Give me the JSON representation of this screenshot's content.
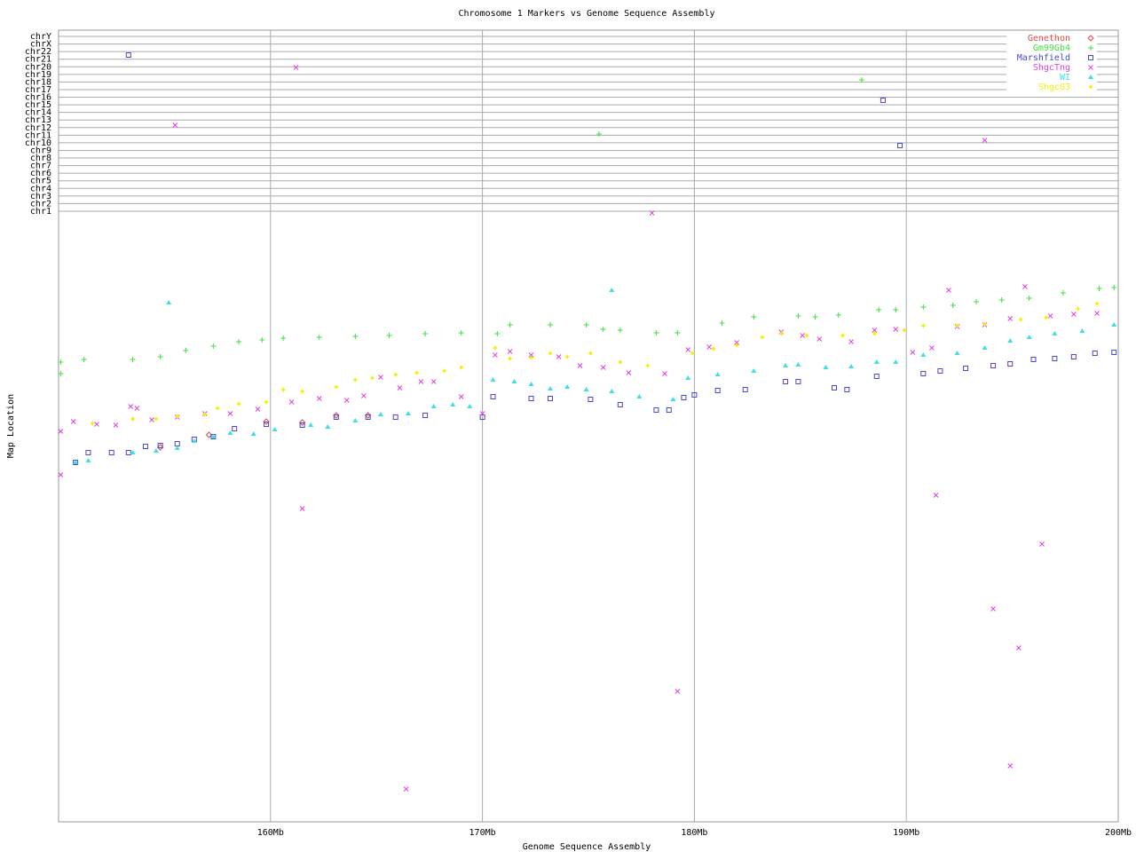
{
  "chart_data": {
    "type": "scatter",
    "title": "Chromosome 1 Markers vs Genome Sequence Assembly",
    "x_label": "Genome Sequence Assembly",
    "y_label": "Map Location",
    "xlim": [
      150,
      200
    ],
    "xticks": [
      {
        "value": 160,
        "label": "160Mb"
      },
      {
        "value": 170,
        "label": "170Mb"
      },
      {
        "value": 180,
        "label": "180Mb"
      },
      {
        "value": 190,
        "label": "190Mb"
      },
      {
        "value": 200,
        "label": "200Mb"
      }
    ],
    "ylim": [
      0,
      892
    ],
    "grid": true,
    "legend": "top-right",
    "chromosomes": [
      "chr1",
      "chr2",
      "chr3",
      "chr4",
      "chr5",
      "chr6",
      "chr7",
      "chr8",
      "chr9",
      "chr10",
      "chr11",
      "chr12",
      "chr13",
      "chr14",
      "chr15",
      "chr16",
      "chr17",
      "chr18",
      "chr19",
      "chr20",
      "chr21",
      "chr22",
      "chrX",
      "chrY"
    ],
    "series": [
      {
        "name": "Genethon",
        "color": "#e04848",
        "marker": "diamond",
        "x": [
          154.8,
          157.1,
          159.8,
          161.5,
          163.1,
          164.6
        ],
        "values": [
          422,
          436,
          451,
          450,
          458,
          458
        ]
      },
      {
        "name": "Gm99Gb4",
        "color": "#40e040",
        "marker": "plus",
        "x": [
          150.1,
          150.1,
          151.2,
          153.5,
          154.8,
          156.0,
          157.3,
          158.5,
          159.6,
          160.6,
          162.3,
          164.0,
          165.6,
          167.3,
          169.0,
          170.7,
          171.3,
          173.2,
          174.9,
          175.7,
          176.5,
          178.2,
          179.2,
          181.3,
          182.8,
          184.9,
          185.7,
          186.8,
          188.7,
          189.5,
          190.8,
          192.2,
          193.3,
          194.5,
          195.8,
          197.4,
          199.1,
          199.8,
          175.5,
          187.9
        ],
        "values": [
          518,
          505,
          521,
          521,
          524,
          531,
          536,
          541,
          543,
          545,
          546,
          547,
          548,
          550,
          551,
          550,
          560,
          560,
          560,
          555,
          554,
          551,
          551,
          562,
          569,
          570,
          569,
          571,
          577,
          577,
          580,
          582,
          586,
          588,
          590,
          596,
          601,
          602,
          775,
          836
        ]
      },
      {
        "name": "Marshfield",
        "color": "#4848d0",
        "marker": "square",
        "x": [
          150.8,
          151.4,
          152.5,
          153.3,
          154.1,
          154.8,
          155.6,
          156.4,
          157.3,
          158.3,
          159.8,
          161.5,
          163.1,
          164.6,
          165.9,
          167.3,
          170.0,
          170.5,
          172.3,
          173.2,
          175.1,
          176.5,
          178.2,
          178.8,
          179.5,
          180.0,
          181.1,
          182.4,
          184.3,
          184.9,
          186.6,
          187.2,
          188.6,
          190.8,
          191.6,
          192.8,
          194.1,
          194.9,
          196.0,
          197.0,
          197.9,
          198.9,
          199.8,
          153.3,
          188.9,
          189.7
        ],
        "values": [
          405,
          416,
          416,
          416,
          423,
          424,
          426,
          431,
          434,
          443,
          448,
          447,
          456,
          456,
          456,
          458,
          456,
          479,
          477,
          477,
          476,
          470,
          464,
          464,
          478,
          481,
          486,
          487,
          496,
          496,
          489,
          487,
          502,
          505,
          508,
          511,
          514,
          516,
          521,
          522,
          524,
          528,
          529,
          864,
          813,
          762
        ]
      },
      {
        "name": "ShgcTng",
        "color": "#e040e0",
        "marker": "cross",
        "x": [
          150.1,
          150.1,
          150.7,
          151.8,
          152.7,
          153.4,
          153.7,
          154.4,
          155.6,
          156.9,
          158.1,
          159.4,
          161.0,
          162.3,
          163.6,
          164.4,
          165.2,
          166.1,
          167.1,
          167.7,
          169.0,
          170.0,
          170.6,
          171.3,
          172.3,
          173.6,
          174.6,
          175.7,
          176.9,
          178.6,
          179.7,
          180.7,
          182.0,
          184.1,
          185.1,
          185.9,
          187.4,
          188.5,
          189.5,
          190.3,
          191.2,
          192.4,
          193.7,
          194.9,
          196.8,
          197.9,
          199.0,
          155.5,
          161.2,
          178.0,
          193.7,
          161.5,
          166.4,
          179.2,
          191.4,
          194.1,
          196.4,
          195.3,
          194.9,
          192.0,
          195.6
        ],
        "values": [
          440,
          391,
          451,
          448,
          447,
          468,
          466,
          453,
          456,
          460,
          460,
          465,
          473,
          477,
          475,
          480,
          501,
          489,
          496,
          496,
          479,
          460,
          526,
          530,
          526,
          524,
          514,
          512,
          506,
          505,
          532,
          535,
          540,
          552,
          548,
          544,
          541,
          554,
          555,
          529,
          534,
          558,
          560,
          567,
          570,
          572,
          573,
          785,
          850,
          686,
          768,
          353,
          37,
          147,
          368,
          240,
          313,
          196,
          63,
          599,
          603
        ]
      },
      {
        "name": "WI",
        "color": "#40e0e0",
        "marker": "triangle",
        "x": [
          150.8,
          151.4,
          153.5,
          154.6,
          155.6,
          156.4,
          157.3,
          158.1,
          159.2,
          160.2,
          161.9,
          162.7,
          164.0,
          165.2,
          166.5,
          167.7,
          168.6,
          169.4,
          170.5,
          171.5,
          172.3,
          173.2,
          174.0,
          174.9,
          176.1,
          177.4,
          179.0,
          179.7,
          181.1,
          182.8,
          184.3,
          184.9,
          186.2,
          187.4,
          188.6,
          189.5,
          190.8,
          192.4,
          193.7,
          194.9,
          195.8,
          197.0,
          198.3,
          199.8,
          155.2,
          176.1
        ],
        "values": [
          405,
          407,
          416,
          418,
          421,
          429,
          434,
          438,
          437,
          442,
          447,
          445,
          452,
          459,
          460,
          468,
          470,
          468,
          498,
          496,
          493,
          488,
          490,
          487,
          485,
          479,
          476,
          500,
          504,
          508,
          514,
          515,
          512,
          513,
          518,
          518,
          526,
          528,
          534,
          542,
          546,
          550,
          553,
          560,
          585,
          599
        ]
      },
      {
        "name": "ShgcG3",
        "color": "#f0f000",
        "marker": "star",
        "x": [
          151.6,
          153.5,
          154.6,
          155.6,
          156.9,
          157.5,
          158.5,
          159.8,
          160.6,
          161.5,
          163.1,
          164.0,
          164.8,
          165.9,
          166.9,
          168.2,
          169.0,
          170.6,
          171.3,
          172.3,
          173.2,
          174.0,
          175.1,
          176.5,
          177.8,
          179.9,
          180.9,
          182.0,
          183.2,
          184.1,
          185.3,
          187.0,
          188.5,
          189.9,
          190.8,
          192.4,
          193.7,
          195.4,
          196.6,
          198.1,
          199.0
        ],
        "values": [
          449,
          454,
          454,
          457,
          459,
          466,
          471,
          473,
          487,
          485,
          490,
          498,
          500,
          504,
          506,
          508,
          512,
          534,
          522,
          523,
          528,
          524,
          528,
          518,
          514,
          528,
          533,
          537,
          546,
          550,
          548,
          548,
          550,
          554,
          559,
          559,
          561,
          566,
          568,
          578,
          584
        ]
      }
    ]
  }
}
